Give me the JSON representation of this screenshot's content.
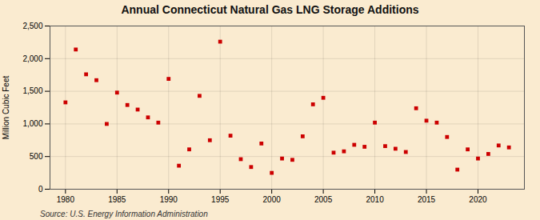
{
  "chart_data": {
    "type": "scatter",
    "title": "Annual Connecticut Natural Gas LNG Storage Additions",
    "ylabel": "Million Cubic Feet",
    "source": "Source: U.S. Energy Information Administration",
    "x": [
      1980,
      1981,
      1982,
      1983,
      1984,
      1985,
      1986,
      1987,
      1988,
      1989,
      1990,
      1991,
      1992,
      1993,
      1994,
      1995,
      1996,
      1997,
      1998,
      1999,
      2000,
      2001,
      2002,
      2003,
      2004,
      2005,
      2006,
      2007,
      2008,
      2009,
      2010,
      2011,
      2012,
      2013,
      2014,
      2015,
      2016,
      2017,
      2018,
      2019,
      2020,
      2021,
      2022,
      2023
    ],
    "values": [
      1330,
      2140,
      1760,
      1670,
      1000,
      1480,
      1290,
      1220,
      1100,
      1020,
      1690,
      360,
      610,
      1430,
      750,
      2260,
      820,
      460,
      340,
      700,
      250,
      470,
      450,
      810,
      1300,
      1400,
      560,
      580,
      680,
      650,
      1020,
      660,
      620,
      570,
      1240,
      1050,
      1020,
      800,
      300,
      610,
      470,
      540,
      670,
      640
    ],
    "color": "#cc0000",
    "marker": "square",
    "xlim": [
      1978.5,
      2024.5
    ],
    "xticks": [
      1980,
      1985,
      1990,
      1995,
      2000,
      2005,
      2010,
      2015,
      2020
    ],
    "ylim": [
      0,
      2500
    ],
    "yticks": [
      0,
      500,
      {
        "value": 1000,
        "label": "1,000"
      },
      {
        "value": 1500,
        "label": "1,500"
      },
      {
        "value": 2000,
        "label": "2,000"
      },
      {
        "value": 2500,
        "label": "2,500"
      }
    ],
    "grid": true
  }
}
